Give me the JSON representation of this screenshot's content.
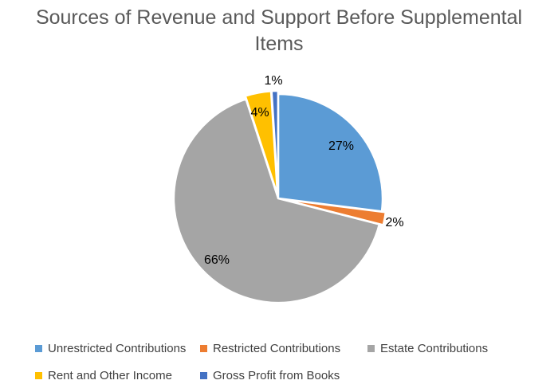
{
  "chart_data": {
    "type": "pie",
    "title_lines": [
      "Sources of Revenue and Support Before Supplemental",
      "Items"
    ],
    "slices": [
      {
        "name": "Unrestricted Contributions",
        "value": 27,
        "label": "27%",
        "color": "#5B9BD5"
      },
      {
        "name": "Restricted Contributions",
        "value": 2,
        "label": "2%",
        "color": "#ED7D31"
      },
      {
        "name": "Estate Contributions",
        "value": 66,
        "label": "66%",
        "color": "#A5A5A5"
      },
      {
        "name": "Rent and Other Income",
        "value": 4,
        "label": "4%",
        "color": "#FFC000"
      },
      {
        "name": "Gross Profit from Books",
        "value": 1,
        "label": "1%",
        "color": "#4472C4"
      }
    ],
    "legend_position": "bottom"
  }
}
